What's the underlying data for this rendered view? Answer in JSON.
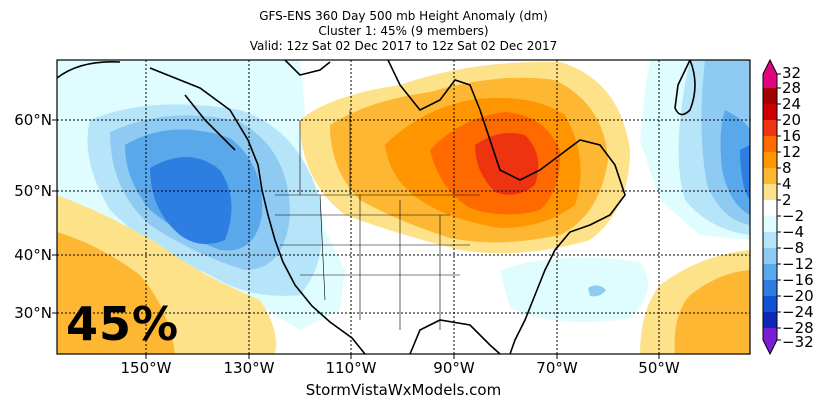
{
  "header": {
    "line1": "GFS-ENS 360 Day 500 mb Height Anomaly (dm)",
    "line2": "Cluster 1: 45% (9 members)",
    "line3": "Valid: 12z Sat 02 Dec 2017 to 12z Sat 02 Dec 2017"
  },
  "map": {
    "lat_labels": [
      "60°N",
      "50°N",
      "40°N",
      "30°N"
    ],
    "lon_labels": [
      "150°W",
      "130°W",
      "110°W",
      "90°W",
      "70°W",
      "50°W"
    ],
    "cluster_percent": "45%",
    "credit": "StormVistaWxModels.com"
  },
  "colorbar": {
    "labels": [
      "32",
      "28",
      "24",
      "20",
      "16",
      "12",
      "8",
      "4",
      "2",
      "−2",
      "−4",
      "−8",
      "−12",
      "−16",
      "−20",
      "−24",
      "−28",
      "−32"
    ],
    "colors": {
      "c28_32": "#e0067f",
      "c24_28": "#a30000",
      "c20_24": "#cc0000",
      "c16_20": "#ee3311",
      "c12_16": "#ff6a00",
      "c8_12": "#ff9500",
      "c4_8": "#fdb733",
      "c2_4": "#fde28a",
      "zero": "#ffffff",
      "n2_4": "#dffcff",
      "n4_8": "#b6e4f9",
      "n8_12": "#8fcaf3",
      "n12_16": "#5aa8ec",
      "n16_20": "#2d7ee0",
      "n20_24": "#1253d5",
      "n24_28": "#0d28b5",
      "n28_32": "#7a1ed6"
    }
  }
}
